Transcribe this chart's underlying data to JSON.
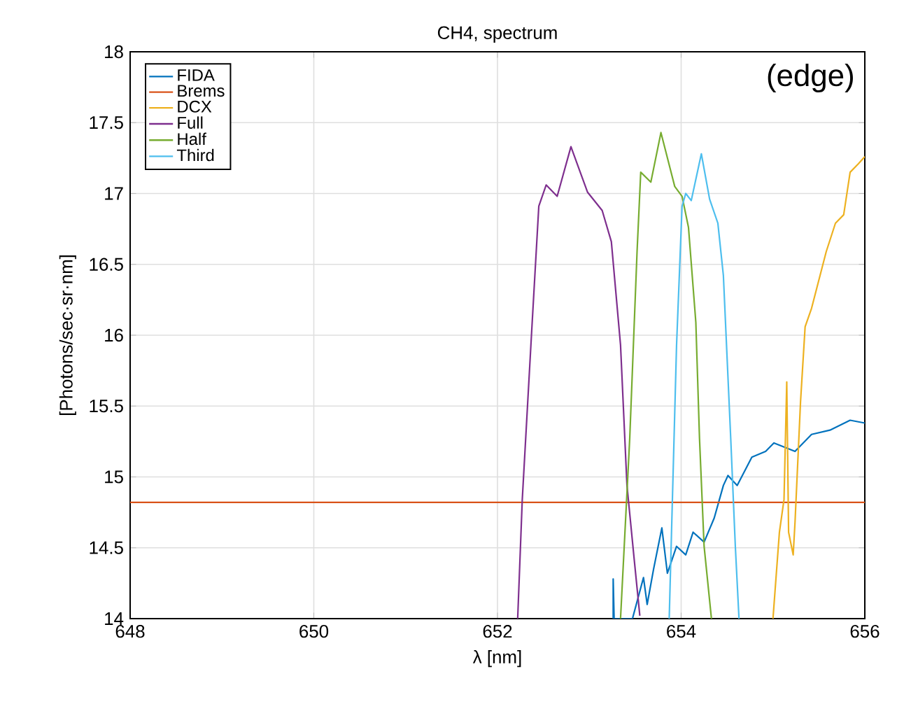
{
  "chart_data": {
    "type": "line",
    "title": "CH4, spectrum",
    "xlabel": "λ [nm]",
    "ylabel": "[Photons/sec·sr·nm]",
    "annotations": [
      "(edge)"
    ],
    "xlim": [
      648,
      656
    ],
    "xticks": [
      648,
      650,
      652,
      654,
      656
    ],
    "ylim": [
      14,
      18
    ],
    "yticks": [
      14,
      14.5,
      15,
      15.5,
      16,
      16.5,
      17,
      17.5,
      18
    ],
    "grid": true,
    "legend": "top left",
    "marker": "none",
    "line_style": "solid",
    "series": [
      {
        "name": "FIDA",
        "color": "#0072bd",
        "x": [
          653.26,
          653.26,
          653.27,
          653.47,
          653.59,
          653.63,
          653.7,
          653.79,
          653.85,
          653.95,
          654.05,
          654.13,
          654.25,
          654.36,
          654.46,
          654.51,
          654.61,
          654.77,
          654.92,
          655.01,
          655.24,
          655.42,
          655.62,
          655.84,
          656.0
        ],
        "values": [
          14.0,
          14.28,
          14.0,
          14.0,
          14.29,
          14.1,
          14.35,
          14.64,
          14.32,
          14.51,
          14.45,
          14.61,
          14.54,
          14.71,
          14.94,
          15.01,
          14.94,
          15.14,
          15.18,
          15.24,
          15.18,
          15.3,
          15.33,
          15.4,
          15.38
        ]
      },
      {
        "name": "Brems",
        "color": "#d95319",
        "x": [
          648,
          656
        ],
        "values": [
          14.82,
          14.82
        ]
      },
      {
        "name": "DCX",
        "color": "#edb120",
        "x": [
          655.0,
          655.07,
          655.12,
          655.15,
          655.17,
          655.22,
          655.24,
          655.3,
          655.35,
          655.42,
          655.5,
          655.58,
          655.68,
          655.77,
          655.84,
          655.93,
          656.0
        ],
        "values": [
          14.0,
          14.61,
          14.84,
          15.67,
          14.61,
          14.45,
          14.68,
          15.53,
          16.06,
          16.19,
          16.39,
          16.59,
          16.79,
          16.85,
          17.15,
          17.21,
          17.26
        ]
      },
      {
        "name": "Full",
        "color": "#7e2f8e",
        "x": [
          652.22,
          652.27,
          652.37,
          652.45,
          652.53,
          652.65,
          652.8,
          652.98,
          653.14,
          653.24,
          653.34,
          653.41,
          653.49,
          653.55
        ],
        "values": [
          14.0,
          14.84,
          16.0,
          16.91,
          17.06,
          16.98,
          17.33,
          17.01,
          16.88,
          16.66,
          15.93,
          14.94,
          14.41,
          14.02
        ]
      },
      {
        "name": "Half",
        "color": "#77ac30",
        "x": [
          653.34,
          653.44,
          653.52,
          653.56,
          653.67,
          653.78,
          653.93,
          654.01,
          654.08,
          654.16,
          654.2,
          654.25,
          654.33
        ],
        "values": [
          14.0,
          15.27,
          16.59,
          17.15,
          17.08,
          17.43,
          17.05,
          16.98,
          16.76,
          16.09,
          15.27,
          14.51,
          14.0
        ]
      },
      {
        "name": "Third",
        "color": "#4dbeee",
        "x": [
          653.87,
          653.95,
          654.01,
          654.05,
          654.11,
          654.22,
          654.31,
          654.4,
          654.46,
          654.54,
          654.59,
          654.63
        ],
        "values": [
          14.0,
          15.93,
          16.91,
          17.0,
          16.95,
          17.28,
          16.96,
          16.79,
          16.42,
          15.27,
          14.51,
          14.0
        ]
      }
    ]
  }
}
